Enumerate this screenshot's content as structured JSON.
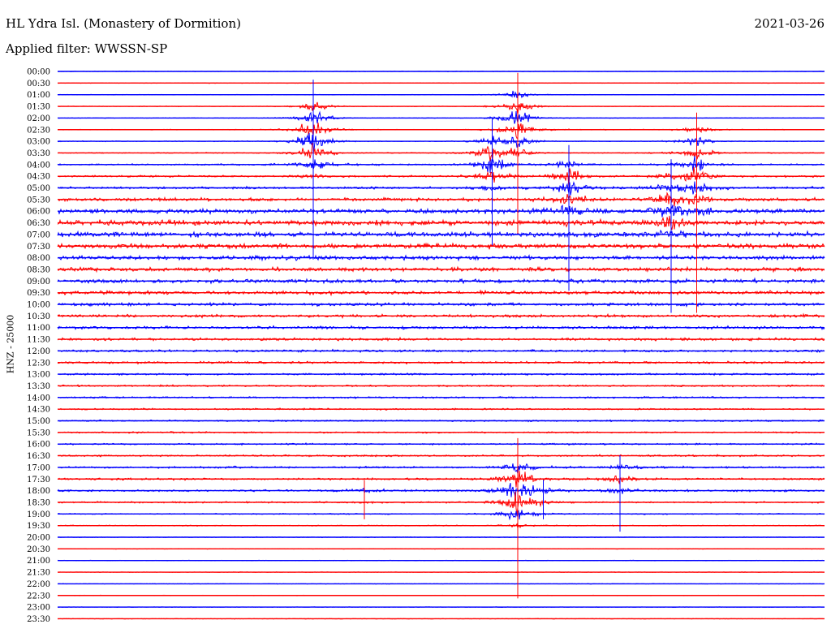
{
  "header": {
    "station": "HL Ydra Isl. (Monastery of Dormition)",
    "filter": "Applied filter: WWSSN-SP",
    "date": "2021-03-26"
  },
  "chart_data": {
    "type": "line",
    "title": "HL Ydra Isl. (Monastery of Dormition)",
    "subtitle": "Applied filter: WWSSN-SP",
    "date": "2021-03-26",
    "ylabel": "HNZ - 25000",
    "xlabel": "",
    "grid": false,
    "series_colors": [
      "#0000ff",
      "#ff0000"
    ],
    "rows": [
      "00:00",
      "00:30",
      "01:00",
      "01:30",
      "02:00",
      "02:30",
      "03:00",
      "03:30",
      "04:00",
      "04:30",
      "05:00",
      "05:30",
      "06:00",
      "06:30",
      "07:00",
      "07:30",
      "08:00",
      "08:30",
      "09:00",
      "09:30",
      "10:00",
      "10:30",
      "11:00",
      "11:30",
      "12:00",
      "12:30",
      "13:00",
      "13:30",
      "14:00",
      "14:30",
      "15:00",
      "15:30",
      "16:00",
      "16:30",
      "17:00",
      "17:30",
      "18:00",
      "18:30",
      "19:00",
      "19:30",
      "20:00",
      "20:30",
      "21:00",
      "21:30",
      "22:00",
      "22:30",
      "23:00",
      "23:30"
    ],
    "noise": [
      0.3,
      0.3,
      0.3,
      0.3,
      0.3,
      0.4,
      0.4,
      0.5,
      0.8,
      1.0,
      1.2,
      1.6,
      2.2,
      2.6,
      2.5,
      2.4,
      2.2,
      2.0,
      1.9,
      1.8,
      1.6,
      1.5,
      1.4,
      1.3,
      1.2,
      1.1,
      1.0,
      0.9,
      0.9,
      0.8,
      0.8,
      0.8,
      0.8,
      0.9,
      1.0,
      1.0,
      1.0,
      0.8,
      0.6,
      0.5,
      0.4,
      0.3,
      0.3,
      0.3,
      0.3,
      0.3,
      0.3,
      0.3
    ],
    "events": [
      {
        "minute": 53,
        "start_row": 4,
        "end_row": 16,
        "amp": 60
      },
      {
        "minute": 55,
        "start_row": 18,
        "end_row": 28,
        "amp": 40
      },
      {
        "minute": 10,
        "start_row": 3,
        "end_row": 15,
        "amp": 55
      },
      {
        "minute": 18,
        "start_row": 2,
        "end_row": 13,
        "amp": 45
      },
      {
        "minute": 52,
        "start_row": 5,
        "end_row": 22,
        "amp": 45
      },
      {
        "minute": 50,
        "start_row": 7,
        "end_row": 26,
        "amp": 40
      },
      {
        "minute": 24,
        "start_row": 9,
        "end_row": 20,
        "amp": 35
      },
      {
        "minute": 42,
        "start_row": 10,
        "end_row": 28,
        "amp": 40
      },
      {
        "minute": 20,
        "start_row": 8,
        "end_row": 18,
        "amp": 40
      },
      {
        "minute": 25,
        "start_row": 5,
        "end_row": 20,
        "amp": 35
      },
      {
        "minute": 17,
        "start_row": 6,
        "end_row": 14,
        "amp": 45
      },
      {
        "minute": 18,
        "start_row": 34,
        "end_row": 44,
        "amp": 60
      },
      {
        "minute": 22,
        "start_row": 34,
        "end_row": 39,
        "amp": 25
      },
      {
        "minute": 12,
        "start_row": 36,
        "end_row": 38,
        "amp": 22
      },
      {
        "minute": 19,
        "start_row": 36,
        "end_row": 38,
        "amp": 22
      }
    ]
  }
}
